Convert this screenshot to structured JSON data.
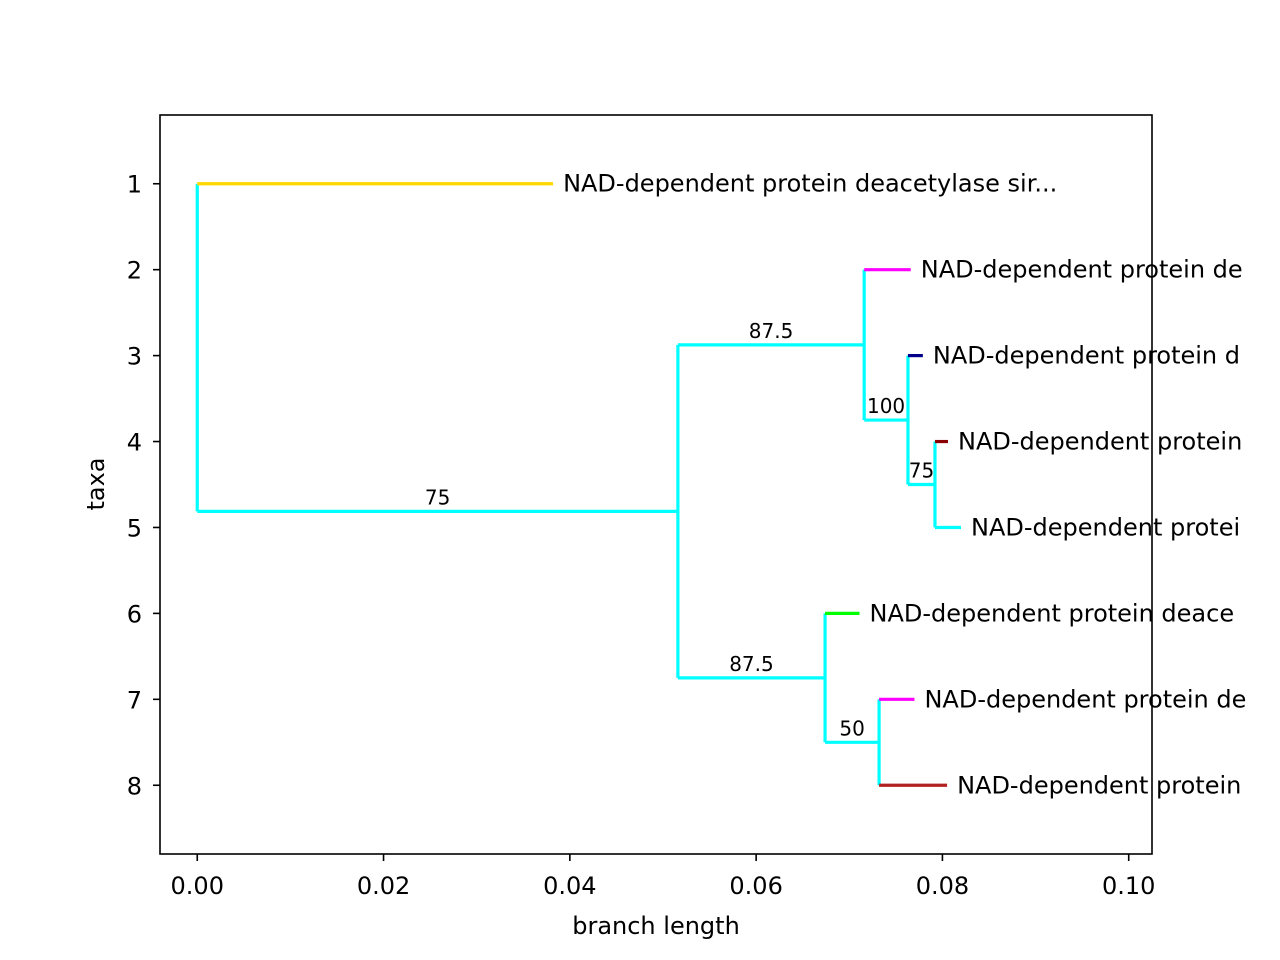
{
  "chart_data": {
    "type": "tree",
    "xlabel": "branch length",
    "ylabel": "taxa",
    "xlim": [
      -0.004,
      0.1025
    ],
    "ylim": [
      0.2,
      8.8
    ],
    "xticks": [
      "0.00",
      "0.02",
      "0.04",
      "0.06",
      "0.08",
      "0.10"
    ],
    "yticks": [
      "1",
      "2",
      "3",
      "4",
      "5",
      "6",
      "7",
      "8"
    ],
    "grid": false,
    "branch_color": "#00ffff",
    "leaves": [
      {
        "label": "NAD-dependent protein deacetylase sir...",
        "x": 0.0382,
        "y": 1,
        "color": "#ffd700"
      },
      {
        "label": "NAD-dependent protein de",
        "x": 0.0766,
        "y": 2,
        "color": "#ff00ff"
      },
      {
        "label": "NAD-dependent protein d",
        "x": 0.0779,
        "y": 3,
        "color": "#00008b"
      },
      {
        "label": "NAD-dependent protein",
        "x": 0.0806,
        "y": 4,
        "color": "#8b0000"
      },
      {
        "label": "NAD-dependent protei",
        "x": 0.082,
        "y": 5,
        "color": "#00ffff"
      },
      {
        "label": "NAD-dependent protein deace",
        "x": 0.0711,
        "y": 6,
        "color": "#00ff00"
      },
      {
        "label": "NAD-dependent protein de",
        "x": 0.077,
        "y": 7,
        "color": "#ff00ff"
      },
      {
        "label": "NAD-dependent protein",
        "x": 0.0805,
        "y": 8,
        "color": "#b22222"
      }
    ],
    "internal_nodes": [
      {
        "id": "root",
        "x": 0.0,
        "y1": 1,
        "y2": 4.8125
      },
      {
        "id": "n5",
        "x": 0.0516,
        "y1": 2.875,
        "y2": 6.75,
        "parent_x": 0.0,
        "support": "75"
      },
      {
        "id": "n3",
        "x": 0.0716,
        "y1": 2,
        "y2": 3.75,
        "parent_x": 0.0516,
        "support": "87.5"
      },
      {
        "id": "n2",
        "x": 0.0763,
        "y1": 3,
        "y2": 4.5,
        "parent_x": 0.0716,
        "support": "100"
      },
      {
        "id": "n1",
        "x": 0.0792,
        "y1": 4,
        "y2": 5,
        "parent_x": 0.0763,
        "support": "75"
      },
      {
        "id": "n4",
        "x": 0.0674,
        "y1": 6,
        "y2": 7.5,
        "parent_x": 0.0516,
        "support": "87.5"
      },
      {
        "id": "n0",
        "x": 0.0732,
        "y1": 7,
        "y2": 8,
        "parent_x": 0.0674,
        "support": "50"
      }
    ],
    "leaf_parents": [
      0.0,
      0.0716,
      0.0763,
      0.0792,
      0.0792,
      0.0674,
      0.0732,
      0.0732
    ]
  }
}
